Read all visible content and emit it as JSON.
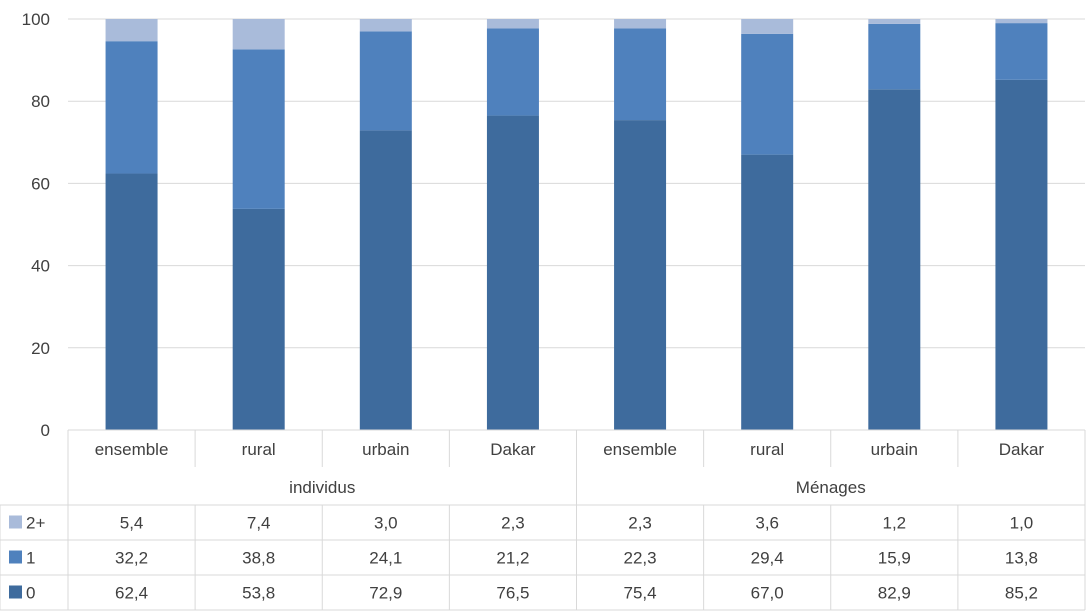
{
  "chart_data": {
    "type": "bar",
    "stacked": true,
    "group_labels": [
      "individus",
      "Ménages"
    ],
    "group_sizes": [
      4,
      4
    ],
    "categories": [
      "ensemble",
      "rural",
      "urbain",
      "Dakar",
      "ensemble",
      "rural",
      "urbain",
      "Dakar"
    ],
    "series": [
      {
        "name": "0",
        "color": "#3E6B9D",
        "values": [
          62.4,
          53.8,
          72.9,
          76.5,
          75.4,
          67.0,
          82.9,
          85.2
        ],
        "labels": [
          "62,4",
          "53,8",
          "72,9",
          "76,5",
          "75,4",
          "67,0",
          "82,9",
          "85,2"
        ]
      },
      {
        "name": "1",
        "color": "#4F81BD",
        "values": [
          32.2,
          38.8,
          24.1,
          21.2,
          22.3,
          29.4,
          15.9,
          13.8
        ],
        "labels": [
          "32,2",
          "38,8",
          "24,1",
          "21,2",
          "22,3",
          "29,4",
          "15,9",
          "13,8"
        ]
      },
      {
        "name": "2+",
        "color": "#A9BBDA",
        "values": [
          5.4,
          7.4,
          3.0,
          2.3,
          2.3,
          3.6,
          1.2,
          1.0
        ],
        "labels": [
          "5,4",
          "7,4",
          "3,0",
          "2,3",
          "2,3",
          "3,6",
          "1,2",
          "1,0"
        ]
      }
    ],
    "ylim": [
      0,
      100
    ],
    "yticks": [
      0,
      20,
      40,
      60,
      80,
      100
    ],
    "grid": true,
    "legend": "data-table-left",
    "data_table": true
  }
}
